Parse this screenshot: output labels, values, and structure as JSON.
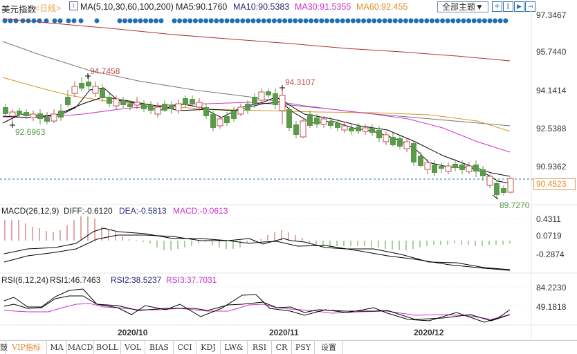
{
  "header": {
    "title": "美元指数",
    "period": "<日线>",
    "ma_params": "MA(5,10,30,60,100,200)",
    "ma5": "MA5:90.1760",
    "ma10": "MA10:90.5383",
    "ma30": "MA30:91.5355",
    "ma60": "MA60:92.455",
    "theme_button": "全部主题▼",
    "toolbar_icons": [
      "crosshair-icon",
      "range-icon",
      "play-icon",
      "exit-icon"
    ]
  },
  "main_axis": {
    "ticks": [
      "97.3467",
      "95.7440",
      "94.1414",
      "92.5388",
      "90.9362"
    ],
    "current_price": "90.4523",
    "high1": "94.7458",
    "high2": "94.3107",
    "low1": "92.6963",
    "low2": "89.7270"
  },
  "macd": {
    "label": "MACD(26,12,9)",
    "diff": "DIFF:-0.6120",
    "dea": "DEA:-0.5813",
    "macd": "MACD:-0.0613",
    "ticks": [
      "0.4311",
      "0.0719",
      "-0.2874"
    ]
  },
  "rsi": {
    "label": "RSI(6,12,24)",
    "rsi1": "RSI1:46.7463",
    "rsi2": "RSI2:38.5237",
    "rsi3": "RSI3:37.7031",
    "ticks": [
      "84.2230",
      "49.1818"
    ]
  },
  "x_axis": [
    "2020/10",
    "2020/11",
    "2020/12"
  ],
  "tabs": [
    "VIP指标",
    "MA",
    "MACD",
    "BOLL",
    "VOL",
    "BIAS",
    "CCI",
    "KDJ",
    "LW&",
    "RSI",
    "CR",
    "PSY",
    "设置"
  ],
  "colors": {
    "up": "#c0504d",
    "down": "#5a9a4a",
    "ma5": "#000000",
    "ma10": "#000000",
    "ma30": "#cc33cc",
    "ma60": "#e0902a",
    "ma100": "#777777",
    "ma200": "#b03030",
    "dots": "#1f6fb5"
  },
  "chart_data": [
    {
      "type": "candlestick",
      "title": "美元指数 <日线>",
      "ylim": [
        89.5,
        97.5
      ],
      "ticks": [
        97.3467,
        95.744,
        94.1414,
        92.5388,
        90.9362
      ],
      "annotations": {
        "high_oct": 94.7458,
        "high_nov": 94.3107,
        "low_sep": 92.6963,
        "low_dec": 89.727,
        "last": 90.4523
      },
      "ma": {
        "MA5": 90.176,
        "MA10": 90.5383,
        "MA30": 91.5355,
        "MA60": 92.455
      },
      "x_labels": [
        "2020/10",
        "2020/11",
        "2020/12"
      ]
    },
    {
      "type": "bar+line",
      "title": "MACD(26,12,9)",
      "series": [
        {
          "name": "DIFF",
          "last": -0.612
        },
        {
          "name": "DEA",
          "last": -0.5813
        },
        {
          "name": "MACD",
          "last": -0.0613
        }
      ],
      "ticks": [
        0.4311,
        0.0719,
        -0.2874
      ]
    },
    {
      "type": "line",
      "title": "RSI(6,12,24)",
      "series": [
        {
          "name": "RSI1",
          "last": 46.7463
        },
        {
          "name": "RSI2",
          "last": 38.5237
        },
        {
          "name": "RSI3",
          "last": 37.7031
        }
      ],
      "ticks": [
        84.223,
        49.1818
      ]
    }
  ]
}
